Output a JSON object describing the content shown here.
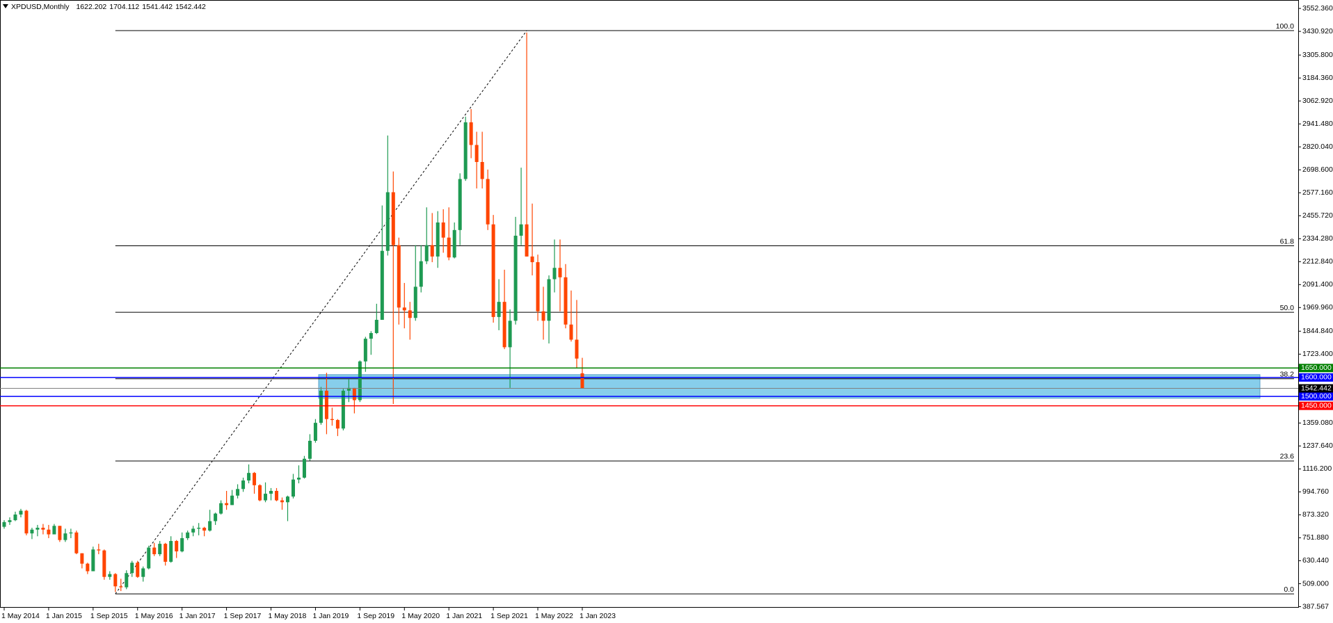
{
  "chart_data": {
    "type": "candlestick",
    "title": "XPDUSD,Monthly",
    "colors": {
      "up": "#1e9a52",
      "down": "#ff4500"
    },
    "ylim": [
      382,
      3597
    ],
    "yticks": [
      {
        "value": 3552.36,
        "label": "3552.360"
      },
      {
        "value": 3430.92,
        "label": "3430.920"
      },
      {
        "value": 3305.8,
        "label": "3305.800"
      },
      {
        "value": 3184.36,
        "label": "3184.360"
      },
      {
        "value": 3062.92,
        "label": "3062.920"
      },
      {
        "value": 2941.48,
        "label": "2941.480"
      },
      {
        "value": 2820.04,
        "label": "2820.040"
      },
      {
        "value": 2698.6,
        "label": "2698.600"
      },
      {
        "value": 2577.16,
        "label": "2577.160"
      },
      {
        "value": 2455.72,
        "label": "2455.720"
      },
      {
        "value": 2334.28,
        "label": "2334.280"
      },
      {
        "value": 2212.84,
        "label": "2212.840"
      },
      {
        "value": 2091.4,
        "label": "2091.400"
      },
      {
        "value": 1969.96,
        "label": "1969.960"
      },
      {
        "value": 1844.84,
        "label": "1844.840"
      },
      {
        "value": 1723.4,
        "label": "1723.400"
      },
      {
        "value": 1359.08,
        "label": "1359.080"
      },
      {
        "value": 1237.64,
        "label": "1237.640"
      },
      {
        "value": 1116.2,
        "label": "1116.200"
      },
      {
        "value": 994.76,
        "label": "994.760"
      },
      {
        "value": 873.32,
        "label": "873.320"
      },
      {
        "value": 751.88,
        "label": "751.880"
      },
      {
        "value": 630.44,
        "label": "630.440"
      },
      {
        "value": 509,
        "label": "509.000"
      },
      387.567
    ],
    "categories": [
      "1 May 2014",
      null,
      null,
      null,
      null,
      null,
      null,
      null,
      "1 Jan 2015",
      null,
      null,
      null,
      null,
      null,
      null,
      null,
      "1 Sep 2015",
      null,
      null,
      null,
      null,
      null,
      null,
      null,
      "1 May 2016",
      null,
      null,
      null,
      null,
      null,
      null,
      null,
      "1 Jan 2017",
      null,
      null,
      null,
      null,
      null,
      null,
      null,
      "1 Sep 2017",
      null,
      null,
      null,
      null,
      null,
      null,
      null,
      "1 May 2018",
      null,
      null,
      null,
      null,
      null,
      null,
      null,
      "1 Jan 2019",
      null,
      null,
      null,
      null,
      null,
      null,
      null,
      "1 Sep 2019",
      null,
      null,
      null,
      null,
      null,
      null,
      null,
      "1 May 2020",
      null,
      null,
      null,
      null,
      null,
      null,
      null,
      "1 Jan 2021",
      null,
      null,
      null,
      null,
      null,
      null,
      null,
      "1 Sep 2021",
      null,
      null,
      null,
      null,
      null,
      null,
      null,
      "1 May 2022",
      null,
      null,
      null,
      null,
      null,
      null,
      null,
      "1 Jan 2023"
    ],
    "ohlc": [
      [
        810,
        845,
        800,
        835
      ],
      [
        835,
        860,
        820,
        845
      ],
      [
        845,
        890,
        840,
        875
      ],
      [
        875,
        905,
        860,
        895
      ],
      [
        895,
        900,
        765,
        775
      ],
      [
        775,
        805,
        745,
        795
      ],
      [
        795,
        820,
        760,
        805
      ],
      [
        805,
        825,
        770,
        795
      ],
      [
        795,
        820,
        750,
        770
      ],
      [
        770,
        825,
        770,
        815
      ],
      [
        815,
        815,
        730,
        740
      ],
      [
        740,
        800,
        730,
        775
      ],
      [
        775,
        800,
        750,
        780
      ],
      [
        780,
        790,
        665,
        670
      ],
      [
        670,
        670,
        590,
        615
      ],
      [
        615,
        620,
        560,
        575
      ],
      [
        575,
        705,
        575,
        690
      ],
      [
        690,
        720,
        665,
        685
      ],
      [
        685,
        690,
        530,
        545
      ],
      [
        545,
        575,
        530,
        560
      ],
      [
        560,
        565,
        465,
        495
      ],
      [
        495,
        535,
        470,
        490
      ],
      [
        490,
        580,
        480,
        565
      ],
      [
        565,
        630,
        545,
        620
      ],
      [
        620,
        630,
        540,
        545
      ],
      [
        545,
        600,
        520,
        590
      ],
      [
        590,
        710,
        585,
        700
      ],
      [
        700,
        725,
        655,
        665
      ],
      [
        665,
        735,
        655,
        720
      ],
      [
        720,
        725,
        605,
        625
      ],
      [
        625,
        760,
        620,
        735
      ],
      [
        735,
        740,
        645,
        680
      ],
      [
        680,
        780,
        675,
        750
      ],
      [
        750,
        790,
        740,
        780
      ],
      [
        780,
        815,
        760,
        800
      ],
      [
        800,
        830,
        765,
        805
      ],
      [
        805,
        810,
        760,
        790
      ],
      [
        790,
        900,
        785,
        840
      ],
      [
        840,
        885,
        820,
        880
      ],
      [
        880,
        950,
        875,
        935
      ],
      [
        935,
        1000,
        900,
        925
      ],
      [
        925,
        1005,
        925,
        975
      ],
      [
        975,
        1035,
        960,
        1010
      ],
      [
        1010,
        1070,
        995,
        1055
      ],
      [
        1055,
        1140,
        1040,
        1095
      ],
      [
        1095,
        1100,
        985,
        1030
      ],
      [
        1030,
        1035,
        945,
        950
      ],
      [
        950,
        1045,
        940,
        985
      ],
      [
        985,
        1015,
        950,
        1000
      ],
      [
        1000,
        1015,
        945,
        950
      ],
      [
        950,
        965,
        900,
        940
      ],
      [
        940,
        975,
        840,
        970
      ],
      [
        970,
        1090,
        960,
        1060
      ],
      [
        1060,
        1135,
        1040,
        1070
      ],
      [
        1070,
        1185,
        1065,
        1170
      ],
      [
        1170,
        1300,
        1160,
        1265
      ],
      [
        1265,
        1380,
        1255,
        1360
      ],
      [
        1360,
        1550,
        1350,
        1530
      ],
      [
        1530,
        1625,
        1300,
        1380
      ],
      [
        1380,
        1440,
        1345,
        1375
      ],
      [
        1375,
        1380,
        1290,
        1330
      ],
      [
        1330,
        1540,
        1320,
        1530
      ],
      [
        1530,
        1590,
        1470,
        1545
      ],
      [
        1545,
        1545,
        1410,
        1480
      ],
      [
        1480,
        1690,
        1470,
        1685
      ],
      [
        1685,
        1815,
        1630,
        1805
      ],
      [
        1805,
        1845,
        1720,
        1835
      ],
      [
        1835,
        1990,
        1830,
        1905
      ],
      [
        1905,
        2510,
        1905,
        2270
      ],
      [
        2270,
        2880,
        2245,
        2580
      ],
      [
        2580,
        2690,
        1460,
        2300
      ],
      [
        2300,
        2340,
        1880,
        1970
      ],
      [
        1970,
        2100,
        1860,
        1955
      ],
      [
        1955,
        2000,
        1800,
        1915
      ],
      [
        1915,
        2300,
        1900,
        2080
      ],
      [
        2080,
        2300,
        2050,
        2215
      ],
      [
        2215,
        2500,
        2200,
        2300
      ],
      [
        2300,
        2470,
        2210,
        2240
      ],
      [
        2240,
        2480,
        2180,
        2420
      ],
      [
        2420,
        2490,
        2260,
        2340
      ],
      [
        2340,
        2500,
        2220,
        2235
      ],
      [
        2235,
        2420,
        2230,
        2380
      ],
      [
        2380,
        2680,
        2300,
        2650
      ],
      [
        2650,
        2980,
        2640,
        2950
      ],
      [
        2950,
        3020,
        2760,
        2830
      ],
      [
        2830,
        2900,
        2600,
        2740
      ],
      [
        2740,
        2900,
        2600,
        2650
      ],
      [
        2650,
        2700,
        2380,
        2410
      ],
      [
        2410,
        2460,
        1890,
        1920
      ],
      [
        1920,
        2120,
        1850,
        2000
      ],
      [
        2000,
        2170,
        1750,
        1760
      ],
      [
        1760,
        1960,
        1545,
        1900
      ],
      [
        1900,
        2450,
        1880,
        2350
      ],
      [
        2350,
        2710,
        2300,
        2410
      ],
      [
        2410,
        3425,
        2240,
        2240
      ],
      [
        2240,
        2520,
        2140,
        2210
      ],
      [
        2210,
        2250,
        1900,
        1950
      ],
      [
        1950,
        2080,
        1800,
        1900
      ],
      [
        1900,
        2140,
        1780,
        2120
      ],
      [
        2120,
        2330,
        2050,
        2180
      ],
      [
        2180,
        2330,
        1950,
        2130
      ],
      [
        2130,
        2200,
        1860,
        1880
      ],
      [
        1880,
        2060,
        1790,
        1800
      ],
      [
        1800,
        2010,
        1650,
        1700
      ],
      [
        1622.202,
        1704.112,
        1541.442,
        1542.442
      ]
    ],
    "current_price": 1542.442,
    "levels": [
      {
        "value": 1650,
        "label": "1650.000",
        "color": "#008000"
      },
      {
        "value": 1600,
        "label": "1600.000",
        "color": "#0000ff"
      },
      {
        "value": 1500,
        "label": "1500.000",
        "color": "#0000ff"
      },
      {
        "value": 1450,
        "label": "1450.000",
        "color": "#ff0000"
      }
    ],
    "zone": {
      "low": 1490,
      "high": 1615,
      "color": "#87ceeb"
    },
    "fibonacci": {
      "low": 455,
      "high": 3435,
      "levels": [
        {
          "value": 100,
          "label": "100.0"
        },
        {
          "value": 61.8,
          "label": "61.8"
        },
        {
          "value": 50,
          "label": "50.0"
        },
        {
          "value": 38.2,
          "label": "38.2"
        },
        {
          "value": 23.6,
          "label": "23.6"
        },
        {
          "value": 0,
          "label": "0.0"
        }
      ]
    }
  }
}
